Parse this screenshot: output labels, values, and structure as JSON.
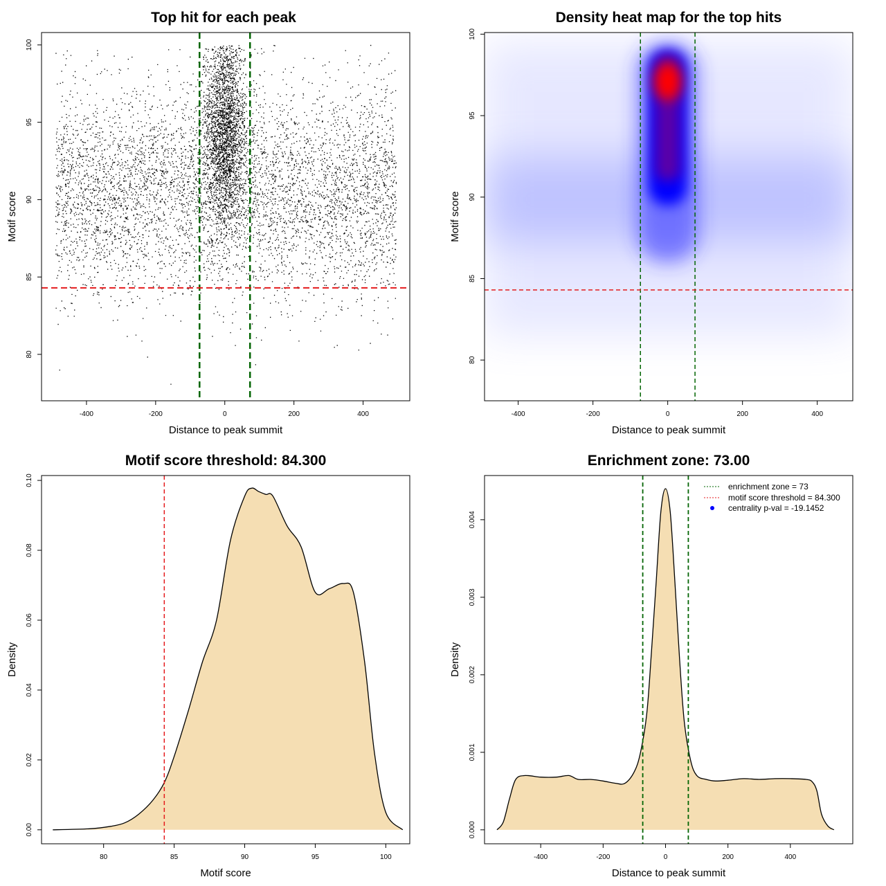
{
  "chart_data": [
    {
      "type": "scatter",
      "title": "Top hit for each peak",
      "xlabel": "Distance to peak summit",
      "ylabel": "Motif score",
      "xlim": [
        -530,
        535
      ],
      "ylim": [
        77.0,
        100.8
      ],
      "xticks": [
        -400,
        -200,
        0,
        200,
        400
      ],
      "yticks": [
        80,
        85,
        90,
        95,
        100
      ],
      "grid": false,
      "colors": {
        "points": "#000000",
        "enrichment_lines": "#006400",
        "threshold_line": "#e41a1c"
      },
      "vlines": [
        -73,
        73
      ],
      "hline": 84.3,
      "point_distribution": {
        "count_background": 11000,
        "count_center": 4000,
        "x_range": [
          -490,
          495
        ],
        "center_sd_x": 30,
        "background_mean_y": 90.5,
        "background_sd_y": 3.3,
        "center_mean_y": 94.5,
        "center_sd_y": 3.0,
        "y_max": 100
      }
    },
    {
      "type": "heatmap",
      "title": "Density heat map for the top hits",
      "xlabel": "Distance to peak summit",
      "ylabel": "Motif score",
      "xlim": [
        -490,
        495
      ],
      "ylim": [
        77.5,
        100.1
      ],
      "xticks": [
        -400,
        -200,
        0,
        200,
        400
      ],
      "yticks": [
        80,
        85,
        90,
        95,
        100
      ],
      "grid": false,
      "colors": {
        "low": "#ffffff",
        "mid": "#0000ff",
        "high": "#ff0000",
        "enrichment_lines": "#006400",
        "threshold_line": "#e41a1c"
      },
      "vlines": [
        -73,
        73
      ],
      "hline": 84.3,
      "hotspot": {
        "x": 0,
        "y": 97.1
      }
    },
    {
      "type": "area",
      "title": "Motif score threshold: 84.300",
      "xlabel": "Motif score",
      "ylabel": "Density",
      "xlim": [
        75.6,
        101.7
      ],
      "ylim": [
        -0.004,
        0.1014
      ],
      "xticks": [
        80,
        85,
        90,
        95,
        100
      ],
      "yticks": [
        0.0,
        0.02,
        0.04,
        0.06,
        0.08,
        0.1
      ],
      "ytick_labels": [
        "0.00",
        "0.02",
        "0.04",
        "0.06",
        "0.08",
        "0.10"
      ],
      "grid": false,
      "colors": {
        "fill": "#f5deb3",
        "line": "#000000",
        "threshold_line": "#e41a1c"
      },
      "vlines": [
        84.3
      ],
      "x": [
        76.4,
        79.0,
        80.5,
        81.5,
        82.5,
        83.5,
        84.3,
        85.0,
        86.0,
        87.0,
        88.0,
        89.0,
        90.0,
        90.5,
        91.0,
        91.5,
        92.0,
        93.0,
        94.0,
        95.0,
        96.0,
        97.0,
        97.7,
        98.5,
        99.2,
        100.0,
        101.2
      ],
      "y": [
        0.0,
        0.0003,
        0.001,
        0.002,
        0.0045,
        0.0085,
        0.0135,
        0.021,
        0.034,
        0.048,
        0.06,
        0.083,
        0.0955,
        0.0978,
        0.0968,
        0.096,
        0.0955,
        0.087,
        0.081,
        0.068,
        0.069,
        0.0705,
        0.068,
        0.048,
        0.022,
        0.005,
        0.0
      ]
    },
    {
      "type": "area",
      "title": "Enrichment zone: 73.00",
      "xlabel": "Distance to peak summit",
      "ylabel": "Density",
      "xlim": [
        -580,
        600
      ],
      "ylim": [
        -0.00018,
        0.00457
      ],
      "xticks": [
        -400,
        -200,
        0,
        200,
        400
      ],
      "yticks": [
        0.0,
        0.001,
        0.002,
        0.003,
        0.004
      ],
      "ytick_labels": [
        "0.000",
        "0.001",
        "0.002",
        "0.003",
        "0.004"
      ],
      "grid": false,
      "colors": {
        "fill": "#f5deb3",
        "line": "#000000",
        "enrichment_lines": "#006400",
        "legend_zone": "#006400",
        "legend_threshold": "#e41a1c",
        "legend_point": "#0000ff"
      },
      "vlines": [
        -73,
        73
      ],
      "x": [
        -540,
        -520,
        -500,
        -480,
        -450,
        -400,
        -350,
        -310,
        -280,
        -240,
        -200,
        -160,
        -130,
        -100,
        -80,
        -60,
        -45,
        -30,
        -15,
        0,
        15,
        30,
        45,
        60,
        80,
        100,
        130,
        160,
        200,
        250,
        300,
        350,
        400,
        450,
        470,
        485,
        500,
        520,
        540
      ],
      "y": [
        0.0,
        0.0001,
        0.0004,
        0.00065,
        0.0007,
        0.00068,
        0.00068,
        0.0007,
        0.00065,
        0.00065,
        0.00063,
        0.0006,
        0.0006,
        0.00075,
        0.001,
        0.0015,
        0.0023,
        0.0032,
        0.0041,
        0.0044,
        0.0041,
        0.0032,
        0.0022,
        0.0014,
        0.0009,
        0.0007,
        0.00065,
        0.00063,
        0.00064,
        0.00066,
        0.00065,
        0.00066,
        0.00066,
        0.00065,
        0.00062,
        0.0005,
        0.0002,
        5e-05,
        0.0
      ],
      "legend": {
        "position": "top-right",
        "entries": [
          "enrichment zone = 73",
          "motif score threshold = 84.300",
          "centrality p-val = -19.1452"
        ]
      }
    }
  ]
}
